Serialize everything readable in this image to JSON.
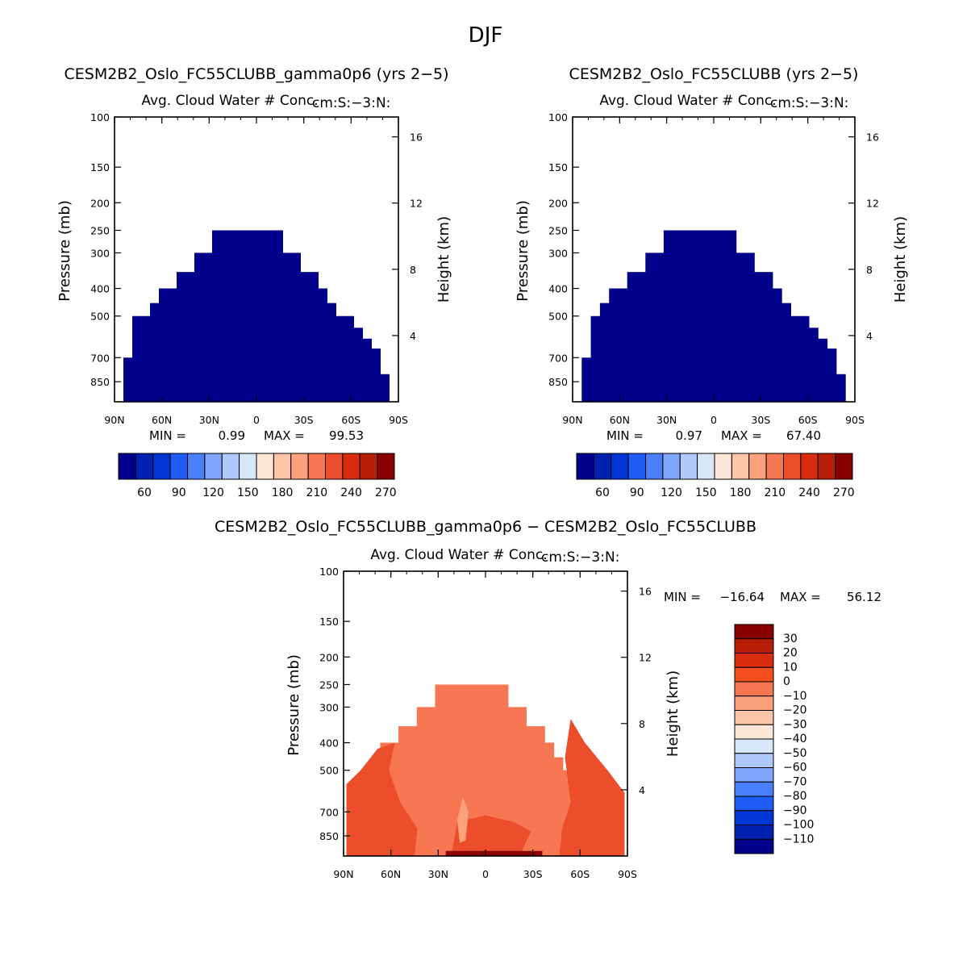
{
  "figure_title": "DJF",
  "chart_data": [
    {
      "type": "heatmap",
      "run_title": "CESM2B2_Oslo_FC55CLUBB_gamma0p6 (yrs 2-5)",
      "subtitle": "Avg. Cloud Water # Conc.",
      "subtitle_right": "cm:S:-3:N:",
      "xlabel": "",
      "ylabel": "Pressure (mb)",
      "y2label": "Height (km)",
      "x_ticks": [
        "90N",
        "60N",
        "30N",
        "0",
        "30S",
        "60S",
        "90S"
      ],
      "y_ticks": [
        100,
        150,
        200,
        250,
        300,
        400,
        500,
        700,
        850
      ],
      "y2_ticks": [
        16,
        12,
        8,
        4
      ],
      "ylim": [
        100,
        1000
      ],
      "min_label": "MIN =",
      "min_value": "0.99",
      "max_label": "MAX =",
      "max_value": "99.53",
      "colorbar_labels": [
        "60",
        "90",
        "120",
        "150",
        "180",
        "210",
        "240",
        "270"
      ],
      "colorbar_colors": [
        "#00008b",
        "#0020b0",
        "#0035d6",
        "#1f5cf5",
        "#4a80fb",
        "#7fa6fb",
        "#b0c9fb",
        "#d8e8fb",
        "#fde6d6",
        "#fcc5a8",
        "#fba17b",
        "#f67751",
        "#ec4d2b",
        "#da2d0f",
        "#b61d06",
        "#8a0000"
      ],
      "field_color": "#00008b",
      "envelope_top_mb": [
        1000,
        700,
        500,
        500,
        450,
        400,
        400,
        350,
        350,
        300,
        300,
        250,
        250,
        250,
        250,
        250,
        250,
        250,
        250,
        300,
        300,
        350,
        350,
        400,
        450,
        500,
        500,
        550,
        600,
        650,
        800,
        1000
      ]
    },
    {
      "type": "heatmap",
      "run_title": "CESM2B2_Oslo_FC55CLUBB (yrs 2-5)",
      "subtitle": "Avg. Cloud Water # Conc.",
      "subtitle_right": "cm:S:-3:N:",
      "xlabel": "",
      "ylabel": "Pressure (mb)",
      "y2label": "Height (km)",
      "x_ticks": [
        "90N",
        "60N",
        "30N",
        "0",
        "30S",
        "60S",
        "90S"
      ],
      "y_ticks": [
        100,
        150,
        200,
        250,
        300,
        400,
        500,
        700,
        850
      ],
      "y2_ticks": [
        16,
        12,
        8,
        4
      ],
      "ylim": [
        100,
        1000
      ],
      "min_label": "MIN =",
      "min_value": "0.97",
      "max_label": "MAX =",
      "max_value": "67.40",
      "colorbar_labels": [
        "60",
        "90",
        "120",
        "150",
        "180",
        "210",
        "240",
        "270"
      ],
      "colorbar_colors": [
        "#00008b",
        "#0020b0",
        "#0035d6",
        "#1f5cf5",
        "#4a80fb",
        "#7fa6fb",
        "#b0c9fb",
        "#d8e8fb",
        "#fde6d6",
        "#fcc5a8",
        "#fba17b",
        "#f67751",
        "#ec4d2b",
        "#da2d0f",
        "#b61d06",
        "#8a0000"
      ],
      "field_color": "#00008b",
      "envelope_top_mb": [
        1000,
        700,
        500,
        450,
        400,
        400,
        350,
        350,
        300,
        300,
        250,
        250,
        250,
        250,
        250,
        250,
        250,
        250,
        300,
        300,
        350,
        350,
        400,
        450,
        500,
        500,
        550,
        600,
        650,
        800,
        1000
      ]
    },
    {
      "type": "heatmap",
      "run_title": "CESM2B2_Oslo_FC55CLUBB_gamma0p6 - CESM2B2_Oslo_FC55CLUBB",
      "subtitle": "Avg. Cloud Water # Conc.",
      "subtitle_right": "cm:S:-3:N:",
      "xlabel": "",
      "ylabel": "Pressure (mb)",
      "y2label": "Height (km)",
      "x_ticks": [
        "90N",
        "60N",
        "30N",
        "0",
        "30S",
        "60S",
        "90S"
      ],
      "y_ticks": [
        100,
        150,
        200,
        250,
        300,
        400,
        500,
        700,
        850
      ],
      "y2_ticks": [
        16,
        12,
        8,
        4
      ],
      "ylim": [
        100,
        1000
      ],
      "min_label": "MIN =",
      "min_value": "-16.64",
      "max_label": "MAX =",
      "max_value": "56.12",
      "colorbar_labels": [
        "30",
        "20",
        "10",
        "0",
        "-10",
        "-20",
        "-30",
        "-40",
        "-50",
        "-60",
        "-70",
        "-80",
        "-90",
        "-100",
        "-110"
      ],
      "colorbar_colors": [
        "#8a0000",
        "#b61d06",
        "#da2d0f",
        "#f24f1c",
        "#f67751",
        "#fba17b",
        "#fcc5a8",
        "#fde6d6",
        "#d8e8fb",
        "#b0c9fb",
        "#7fa6fb",
        "#4a80fb",
        "#1f5cf5",
        "#0035d6",
        "#0020b0",
        "#00008b"
      ],
      "field_color": "#f67751",
      "envelope_top_mb": [
        1000,
        550,
        500,
        450,
        400,
        400,
        350,
        350,
        300,
        300,
        250,
        250,
        250,
        250,
        250,
        250,
        250,
        250,
        300,
        300,
        350,
        350,
        400,
        450,
        500,
        500,
        550,
        600,
        650,
        800,
        1000
      ]
    }
  ]
}
